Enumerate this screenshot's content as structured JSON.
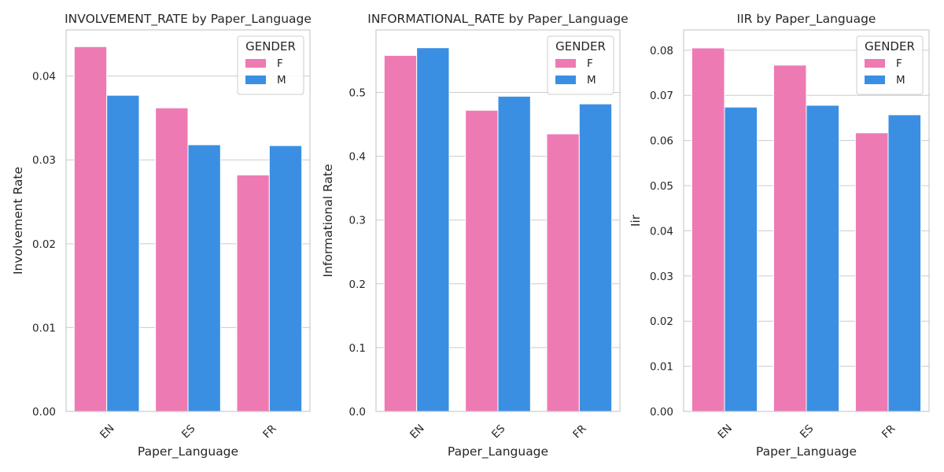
{
  "chart_data": [
    {
      "type": "bar",
      "title": "INVOLVEMENT_RATE by Paper_Language",
      "xlabel": "Paper_Language",
      "ylabel": "Involvement Rate",
      "categories": [
        "EN",
        "ES",
        "FR"
      ],
      "ylim": [
        0,
        0.0455
      ],
      "yticks": [
        0.0,
        0.01,
        0.02,
        0.03,
        0.04
      ],
      "ytick_labels": [
        "0.00",
        "0.01",
        "0.02",
        "0.03",
        "0.04"
      ],
      "grid": "y",
      "legend": {
        "title": "GENDER",
        "placement": "top-right"
      },
      "series": [
        {
          "name": "F",
          "color": "#ee7ab3",
          "values": [
            0.0435,
            0.0362,
            0.0282
          ]
        },
        {
          "name": "M",
          "color": "#3a8fe3",
          "values": [
            0.0377,
            0.0318,
            0.0317
          ]
        }
      ]
    },
    {
      "type": "bar",
      "title": "INFORMATIONAL_RATE by Paper_Language",
      "xlabel": "Paper_Language",
      "ylabel": "Informational Rate",
      "categories": [
        "EN",
        "ES",
        "FR"
      ],
      "ylim": [
        0,
        0.598
      ],
      "yticks": [
        0.0,
        0.1,
        0.2,
        0.3,
        0.4,
        0.5
      ],
      "ytick_labels": [
        "0.0",
        "0.1",
        "0.2",
        "0.3",
        "0.4",
        "0.5"
      ],
      "grid": "y",
      "legend": {
        "title": "GENDER",
        "placement": "top-right"
      },
      "series": [
        {
          "name": "F",
          "color": "#ee7ab3",
          "values": [
            0.558,
            0.472,
            0.435
          ]
        },
        {
          "name": "M",
          "color": "#3a8fe3",
          "values": [
            0.57,
            0.494,
            0.482
          ]
        }
      ]
    },
    {
      "type": "bar",
      "title": "IIR by Paper_Language",
      "xlabel": "Paper_Language",
      "ylabel": "Iir",
      "categories": [
        "EN",
        "ES",
        "FR"
      ],
      "ylim": [
        0,
        0.0845
      ],
      "yticks": [
        0.0,
        0.01,
        0.02,
        0.03,
        0.04,
        0.05,
        0.06,
        0.07,
        0.08
      ],
      "ytick_labels": [
        "0.00",
        "0.01",
        "0.02",
        "0.03",
        "0.04",
        "0.05",
        "0.06",
        "0.07",
        "0.08"
      ],
      "grid": "y",
      "legend": {
        "title": "GENDER",
        "placement": "top-right"
      },
      "series": [
        {
          "name": "F",
          "color": "#ee7ab3",
          "values": [
            0.0805,
            0.0767,
            0.0617
          ]
        },
        {
          "name": "M",
          "color": "#3a8fe3",
          "values": [
            0.0674,
            0.0678,
            0.0657
          ]
        }
      ]
    }
  ]
}
